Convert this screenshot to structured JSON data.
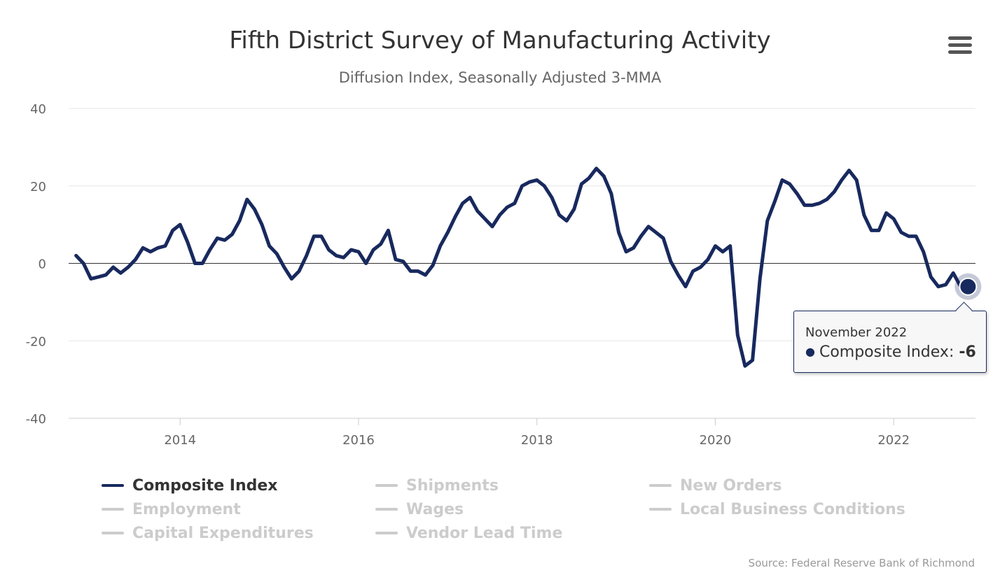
{
  "colors": {
    "series": "#18295e",
    "grid": "#e6e6e6",
    "zero_line": "#333333",
    "inactive": "#cccccc"
  },
  "menu": {
    "icon": "hamburger-menu-icon"
  },
  "chart_data": {
    "type": "line",
    "title": "Fifth District Survey of Manufacturing Activity",
    "subtitle": "Diffusion Index, Seasonally Adjusted 3-MMA",
    "credit": "Source: Federal Reserve Bank of Richmond",
    "ylim": [
      -40,
      40
    ],
    "yticks": [
      "40",
      "20",
      "0",
      "-20",
      "-40"
    ],
    "ytick_values": [
      40,
      20,
      0,
      -20,
      -40
    ],
    "xlim": [
      "2012-10",
      "2022-12"
    ],
    "xticks": [
      "2014",
      "2016",
      "2018",
      "2020",
      "2022"
    ],
    "grid": true,
    "legend_position": "bottom",
    "series": [
      {
        "name": "Composite Index",
        "visible": true,
        "start": "2012-11",
        "frequency": "monthly",
        "values": [
          2,
          0,
          -4,
          -3.5,
          -3,
          -1,
          -2.5,
          -1,
          1,
          4,
          3,
          4,
          4.5,
          8.5,
          10,
          5.5,
          0,
          0,
          3.5,
          6.5,
          6,
          7.5,
          11,
          16.5,
          14,
          10,
          4.5,
          2.5,
          -1,
          -4,
          -2,
          2,
          7,
          7,
          3.5,
          2,
          1.5,
          3.5,
          3,
          0,
          3.5,
          5,
          8.5,
          1,
          0.5,
          -2,
          -2,
          -3,
          -0.5,
          4.5,
          8,
          12,
          15.5,
          17,
          13.5,
          11.5,
          9.5,
          12.5,
          14.5,
          15.5,
          20,
          21,
          21.5,
          20,
          17,
          12.5,
          11,
          14,
          20.5,
          22,
          24.5,
          22.5,
          18,
          8,
          3,
          4,
          7,
          9.5,
          8,
          6.5,
          0.5,
          -3,
          -6,
          -2,
          -1,
          1,
          4.5,
          3,
          4.5,
          -18.5,
          -26.5,
          -25,
          -4,
          11,
          16,
          21.5,
          20.5,
          18,
          15,
          15,
          15.5,
          16.5,
          18.5,
          21.5,
          24,
          21.5,
          12.5,
          8.5,
          8.5,
          13,
          11.5,
          8,
          7,
          7,
          3,
          -3.5,
          -6,
          -5.5,
          -2.5,
          -6,
          -6
        ]
      },
      {
        "name": "Shipments",
        "visible": false
      },
      {
        "name": "New Orders",
        "visible": false
      },
      {
        "name": "Employment",
        "visible": false
      },
      {
        "name": "Wages",
        "visible": false
      },
      {
        "name": "Local Business Conditions",
        "visible": false
      },
      {
        "name": "Capital Expenditures",
        "visible": false
      },
      {
        "name": "Vendor Lead Time",
        "visible": false
      }
    ]
  },
  "tooltip": {
    "date": "November 2022",
    "series_label": "Composite Index: ",
    "value": "-6"
  }
}
